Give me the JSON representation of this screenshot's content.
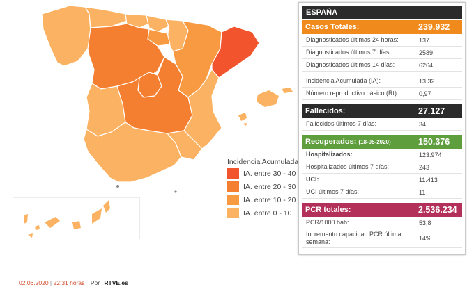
{
  "colors": {
    "level_30_40": "#f2542d",
    "level_20_30": "#f57f31",
    "level_10_20": "#f89a42",
    "level_0_10": "#fbb262",
    "panel_dark": "#2b2b2b",
    "cases": "#f18a1c",
    "deaths": "#2b2b2b",
    "recovered": "#5e9e3d",
    "pcr": "#b3305b"
  },
  "legend": {
    "title": "Incidencia Acumulada (",
    "items": [
      {
        "label": "IA. entre 30 - 40",
        "color": "#f2542d"
      },
      {
        "label": "IA. entre 20 - 30",
        "color": "#f57f31"
      },
      {
        "label": "IA. entre 10 - 20",
        "color": "#f89a42"
      },
      {
        "label": "IA. entre 0 - 10",
        "color": "#fbb262"
      }
    ]
  },
  "panel": {
    "title": "ESPAÑA",
    "cases": {
      "label": "Casos Totales:",
      "value": "239.932",
      "rows": [
        {
          "label": "Diagnosticados últimas 24 horas:",
          "value": "137"
        },
        {
          "label": "Diagnosticados últimos 7 días:",
          "value": "2589"
        },
        {
          "label": "Diagnosticados últimos 14 días:",
          "value": "6264"
        },
        {
          "label": "Incidencia Acumulada (IA):",
          "value": "13,32"
        },
        {
          "label": "Número reproductivo básico (Rt):",
          "value": "0,97"
        }
      ]
    },
    "deaths": {
      "label": "Fallecidos:",
      "value": "27.127",
      "rows": [
        {
          "label": "Fallecidos últimos 7 días:",
          "value": "34"
        }
      ]
    },
    "recovered": {
      "label": "Recuperados:",
      "date": "(18-05-2020)",
      "value": "150.376",
      "rows": [
        {
          "label": "Hospitalizados:",
          "value": "123.974"
        },
        {
          "label": "Hospitalizados últimos 7 días:",
          "value": "243"
        },
        {
          "label": "UCI:",
          "value": "11.413"
        },
        {
          "label": "UCI últimos 7 días:",
          "value": "11"
        }
      ]
    },
    "pcr": {
      "label": "PCR totales:",
      "value": "2.536.234",
      "rows": [
        {
          "label": "PCR/1000 hab:",
          "value": "53,8"
        },
        {
          "label": "Incremento capacidad PCR última semana:",
          "value": "14%"
        }
      ]
    }
  },
  "footer": {
    "date": "02.06.2020",
    "separator": "|",
    "time": "22:31 horas",
    "by": "Por",
    "source": "RTVE.es"
  }
}
